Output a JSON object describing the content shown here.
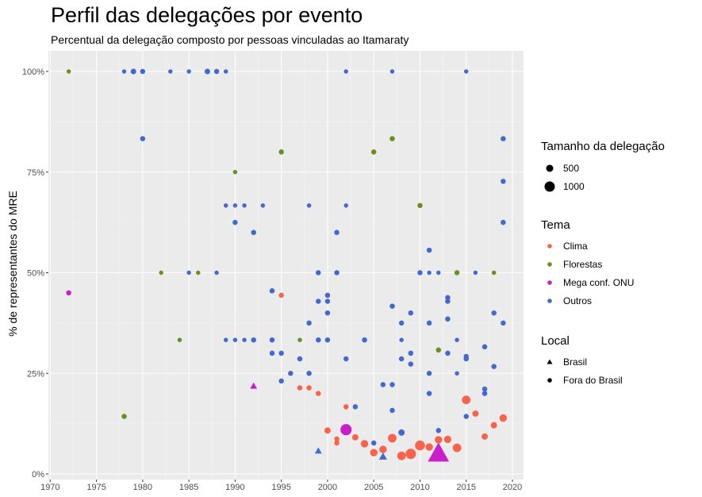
{
  "chart_data": {
    "type": "scatter",
    "title": "Perfil das delegações por evento",
    "subtitle": "Percentual da delegação composto por pessoas vinculadas ao Itamaraty",
    "xlabel": "",
    "ylabel": "% de representantes do MRE",
    "xlim": [
      1969.8,
      2021.2
    ],
    "ylim": [
      0,
      100
    ],
    "x_ticks": [
      1970,
      1975,
      1980,
      1985,
      1990,
      1995,
      2000,
      2005,
      2010,
      2015,
      2020
    ],
    "y_ticks": [
      0,
      25,
      50,
      75,
      100
    ],
    "y_tick_labels": [
      "0%",
      "25%",
      "50%",
      "75%",
      "100%"
    ],
    "grid": true,
    "legend_position": "right",
    "colors": {
      "Clima": "#f8634e",
      "Florestas": "#6b8e23",
      "Mega conf. ONU": "#c91ec9",
      "Outros": "#4169cf"
    },
    "legends": {
      "size": {
        "title": "Tamanho da delegação",
        "items": [
          {
            "label": "500",
            "value": 500
          },
          {
            "label": "1000",
            "value": 1000
          }
        ]
      },
      "color": {
        "title": "Tema",
        "items": [
          "Clima",
          "Florestas",
          "Mega conf. ONU",
          "Outros"
        ]
      },
      "shape": {
        "title": "Local",
        "items": [
          {
            "label": "Brasil",
            "shape": "triangle"
          },
          {
            "label": "Fora do Brasil",
            "shape": "circle"
          }
        ]
      }
    },
    "points": [
      {
        "x": 1972,
        "y": 100,
        "tema": "Florestas",
        "local": "Fora do Brasil",
        "size": 15
      },
      {
        "x": 1972,
        "y": 45,
        "tema": "Mega conf. ONU",
        "local": "Fora do Brasil",
        "size": 30
      },
      {
        "x": 1978,
        "y": 14.3,
        "tema": "Florestas",
        "local": "Fora do Brasil",
        "size": 30
      },
      {
        "x": 1978,
        "y": 100,
        "tema": "Outros",
        "local": "Fora do Brasil",
        "size": 15
      },
      {
        "x": 1979,
        "y": 100,
        "tema": "Outros",
        "local": "Fora do Brasil",
        "size": 40
      },
      {
        "x": 1980,
        "y": 100,
        "tema": "Outros",
        "local": "Fora do Brasil",
        "size": 30
      },
      {
        "x": 1980,
        "y": 83.3,
        "tema": "Outros",
        "local": "Fora do Brasil",
        "size": 30
      },
      {
        "x": 1982,
        "y": 50,
        "tema": "Florestas",
        "local": "Fora do Brasil",
        "size": 15
      },
      {
        "x": 1983,
        "y": 100,
        "tema": "Outros",
        "local": "Fora do Brasil",
        "size": 15
      },
      {
        "x": 1984,
        "y": 33.3,
        "tema": "Florestas",
        "local": "Fora do Brasil",
        "size": 15
      },
      {
        "x": 1985,
        "y": 100,
        "tema": "Outros",
        "local": "Fora do Brasil",
        "size": 15
      },
      {
        "x": 1985,
        "y": 50,
        "tema": "Outros",
        "local": "Fora do Brasil",
        "size": 15
      },
      {
        "x": 1986,
        "y": 50,
        "tema": "Florestas",
        "local": "Fora do Brasil",
        "size": 15
      },
      {
        "x": 1987,
        "y": 100,
        "tema": "Outros",
        "local": "Fora do Brasil",
        "size": 40
      },
      {
        "x": 1988,
        "y": 100,
        "tema": "Outros",
        "local": "Fora do Brasil",
        "size": 30
      },
      {
        "x": 1988,
        "y": 50,
        "tema": "Outros",
        "local": "Fora do Brasil",
        "size": 15
      },
      {
        "x": 1989,
        "y": 100,
        "tema": "Outros",
        "local": "Fora do Brasil",
        "size": 15
      },
      {
        "x": 1989,
        "y": 66.7,
        "tema": "Outros",
        "local": "Fora do Brasil",
        "size": 15
      },
      {
        "x": 1989,
        "y": 33.3,
        "tema": "Outros",
        "local": "Fora do Brasil",
        "size": 15
      },
      {
        "x": 1990,
        "y": 75,
        "tema": "Florestas",
        "local": "Fora do Brasil",
        "size": 15
      },
      {
        "x": 1990,
        "y": 66.7,
        "tema": "Outros",
        "local": "Fora do Brasil",
        "size": 15
      },
      {
        "x": 1990,
        "y": 62.5,
        "tema": "Outros",
        "local": "Fora do Brasil",
        "size": 30
      },
      {
        "x": 1990,
        "y": 33.3,
        "tema": "Outros",
        "local": "Fora do Brasil",
        "size": 15
      },
      {
        "x": 1991,
        "y": 66.7,
        "tema": "Outros",
        "local": "Fora do Brasil",
        "size": 15
      },
      {
        "x": 1991,
        "y": 33.3,
        "tema": "Outros",
        "local": "Fora do Brasil",
        "size": 15
      },
      {
        "x": 1992,
        "y": 60,
        "tema": "Outros",
        "local": "Fora do Brasil",
        "size": 30
      },
      {
        "x": 1992,
        "y": 33.3,
        "tema": "Outros",
        "local": "Fora do Brasil",
        "size": 30
      },
      {
        "x": 1992,
        "y": 21.8,
        "tema": "Mega conf. ONU",
        "local": "Brasil",
        "size": 60
      },
      {
        "x": 1993,
        "y": 66.7,
        "tema": "Outros",
        "local": "Fora do Brasil",
        "size": 15
      },
      {
        "x": 1994,
        "y": 45.5,
        "tema": "Outros",
        "local": "Fora do Brasil",
        "size": 30
      },
      {
        "x": 1994,
        "y": 33.3,
        "tema": "Outros",
        "local": "Fora do Brasil",
        "size": 30
      },
      {
        "x": 1994,
        "y": 30,
        "tema": "Outros",
        "local": "Fora do Brasil",
        "size": 30
      },
      {
        "x": 1995,
        "y": 80,
        "tema": "Florestas",
        "local": "Fora do Brasil",
        "size": 30
      },
      {
        "x": 1995,
        "y": 44.4,
        "tema": "Clima",
        "local": "Fora do Brasil",
        "size": 30
      },
      {
        "x": 1995,
        "y": 30,
        "tema": "Outros",
        "local": "Fora do Brasil",
        "size": 30
      },
      {
        "x": 1995,
        "y": 23.1,
        "tema": "Outros",
        "local": "Fora do Brasil",
        "size": 30
      },
      {
        "x": 1996,
        "y": 25,
        "tema": "Outros",
        "local": "Fora do Brasil",
        "size": 30
      },
      {
        "x": 1997,
        "y": 33.3,
        "tema": "Florestas",
        "local": "Fora do Brasil",
        "size": 15
      },
      {
        "x": 1997,
        "y": 28.6,
        "tema": "Outros",
        "local": "Fora do Brasil",
        "size": 30
      },
      {
        "x": 1997,
        "y": 21.4,
        "tema": "Clima",
        "local": "Fora do Brasil",
        "size": 30
      },
      {
        "x": 1998,
        "y": 66.7,
        "tema": "Outros",
        "local": "Fora do Brasil",
        "size": 15
      },
      {
        "x": 1998,
        "y": 37.5,
        "tema": "Outros",
        "local": "Fora do Brasil",
        "size": 30
      },
      {
        "x": 1998,
        "y": 25,
        "tema": "Outros",
        "local": "Fora do Brasil",
        "size": 30
      },
      {
        "x": 1998,
        "y": 21.4,
        "tema": "Clima",
        "local": "Fora do Brasil",
        "size": 30
      },
      {
        "x": 1999,
        "y": 50,
        "tema": "Outros",
        "local": "Fora do Brasil",
        "size": 30
      },
      {
        "x": 1999,
        "y": 42.9,
        "tema": "Outros",
        "local": "Fora do Brasil",
        "size": 30
      },
      {
        "x": 1999,
        "y": 33.3,
        "tema": "Outros",
        "local": "Fora do Brasil",
        "size": 30
      },
      {
        "x": 1999,
        "y": 20,
        "tema": "Clima",
        "local": "Fora do Brasil",
        "size": 30
      },
      {
        "x": 1999,
        "y": 5.7,
        "tema": "Outros",
        "local": "Brasil",
        "size": 60
      },
      {
        "x": 2000,
        "y": 44.4,
        "tema": "Outros",
        "local": "Fora do Brasil",
        "size": 30
      },
      {
        "x": 2000,
        "y": 42.9,
        "tema": "Outros",
        "local": "Fora do Brasil",
        "size": 30
      },
      {
        "x": 2000,
        "y": 40,
        "tema": "Outros",
        "local": "Fora do Brasil",
        "size": 30
      },
      {
        "x": 2000,
        "y": 33.3,
        "tema": "Outros",
        "local": "Fora do Brasil",
        "size": 30
      },
      {
        "x": 2000,
        "y": 10.8,
        "tema": "Clima",
        "local": "Fora do Brasil",
        "size": 60
      },
      {
        "x": 2001,
        "y": 60,
        "tema": "Outros",
        "local": "Fora do Brasil",
        "size": 30
      },
      {
        "x": 2001,
        "y": 50,
        "tema": "Outros",
        "local": "Fora do Brasil",
        "size": 30
      },
      {
        "x": 2001,
        "y": 8.7,
        "tema": "Clima",
        "local": "Fora do Brasil",
        "size": 30
      },
      {
        "x": 2001,
        "y": 7.7,
        "tema": "Clima",
        "local": "Fora do Brasil",
        "size": 30
      },
      {
        "x": 2002,
        "y": 100,
        "tema": "Outros",
        "local": "Fora do Brasil",
        "size": 15
      },
      {
        "x": 2002,
        "y": 66.7,
        "tema": "Outros",
        "local": "Fora do Brasil",
        "size": 15
      },
      {
        "x": 2002,
        "y": 28.6,
        "tema": "Outros",
        "local": "Fora do Brasil",
        "size": 30
      },
      {
        "x": 2002,
        "y": 16.7,
        "tema": "Clima",
        "local": "Fora do Brasil",
        "size": 30
      },
      {
        "x": 2002,
        "y": 11,
        "tema": "Mega conf. ONU",
        "local": "Fora do Brasil",
        "size": 300
      },
      {
        "x": 2003,
        "y": 16.7,
        "tema": "Outros",
        "local": "Fora do Brasil",
        "size": 30
      },
      {
        "x": 2003,
        "y": 9.1,
        "tema": "Clima",
        "local": "Fora do Brasil",
        "size": 60
      },
      {
        "x": 2004,
        "y": 33.3,
        "tema": "Outros",
        "local": "Fora do Brasil",
        "size": 30
      },
      {
        "x": 2004,
        "y": 7.5,
        "tema": "Clima",
        "local": "Fora do Brasil",
        "size": 100
      },
      {
        "x": 2005,
        "y": 80,
        "tema": "Florestas",
        "local": "Fora do Brasil",
        "size": 30
      },
      {
        "x": 2005,
        "y": 7.7,
        "tema": "Outros",
        "local": "Fora do Brasil",
        "size": 30
      },
      {
        "x": 2005,
        "y": 5.3,
        "tema": "Clima",
        "local": "Fora do Brasil",
        "size": 100
      },
      {
        "x": 2006,
        "y": 22.2,
        "tema": "Outros",
        "local": "Fora do Brasil",
        "size": 30
      },
      {
        "x": 2006,
        "y": 6.1,
        "tema": "Clima",
        "local": "Fora do Brasil",
        "size": 100
      },
      {
        "x": 2006,
        "y": 4.3,
        "tema": "Outros",
        "local": "Brasil",
        "size": 90
      },
      {
        "x": 2007,
        "y": 100,
        "tema": "Outros",
        "local": "Fora do Brasil",
        "size": 15
      },
      {
        "x": 2007,
        "y": 83.3,
        "tema": "Florestas",
        "local": "Fora do Brasil",
        "size": 30
      },
      {
        "x": 2007,
        "y": 41.7,
        "tema": "Outros",
        "local": "Fora do Brasil",
        "size": 30
      },
      {
        "x": 2007,
        "y": 22.2,
        "tema": "Outros",
        "local": "Fora do Brasil",
        "size": 30
      },
      {
        "x": 2007,
        "y": 15.8,
        "tema": "Outros",
        "local": "Fora do Brasil",
        "size": 30
      },
      {
        "x": 2007,
        "y": 8.9,
        "tema": "Clima",
        "local": "Fora do Brasil",
        "size": 150
      },
      {
        "x": 2008,
        "y": 37.5,
        "tema": "Outros",
        "local": "Fora do Brasil",
        "size": 30
      },
      {
        "x": 2008,
        "y": 33.3,
        "tema": "Outros",
        "local": "Fora do Brasil",
        "size": 15
      },
      {
        "x": 2008,
        "y": 28.6,
        "tema": "Outros",
        "local": "Fora do Brasil",
        "size": 30
      },
      {
        "x": 2008,
        "y": 10.3,
        "tema": "Outros",
        "local": "Fora do Brasil",
        "size": 60
      },
      {
        "x": 2008,
        "y": 4.5,
        "tema": "Clima",
        "local": "Fora do Brasil",
        "size": 150
      },
      {
        "x": 2009,
        "y": 40,
        "tema": "Outros",
        "local": "Fora do Brasil",
        "size": 30
      },
      {
        "x": 2009,
        "y": 30,
        "tema": "Outros",
        "local": "Fora do Brasil",
        "size": 30
      },
      {
        "x": 2009,
        "y": 27.3,
        "tema": "Outros",
        "local": "Fora do Brasil",
        "size": 30
      },
      {
        "x": 2009,
        "y": 5,
        "tema": "Clima",
        "local": "Fora do Brasil",
        "size": 250
      },
      {
        "x": 2010,
        "y": 66.7,
        "tema": "Florestas",
        "local": "Fora do Brasil",
        "size": 30
      },
      {
        "x": 2010,
        "y": 50,
        "tema": "Outros",
        "local": "Fora do Brasil",
        "size": 30
      },
      {
        "x": 2010,
        "y": 7.1,
        "tema": "Clima",
        "local": "Fora do Brasil",
        "size": 220
      },
      {
        "x": 2011,
        "y": 55.6,
        "tema": "Outros",
        "local": "Fora do Brasil",
        "size": 30
      },
      {
        "x": 2011,
        "y": 50,
        "tema": "Outros",
        "local": "Fora do Brasil",
        "size": 15
      },
      {
        "x": 2011,
        "y": 37.5,
        "tema": "Outros",
        "local": "Fora do Brasil",
        "size": 30
      },
      {
        "x": 2011,
        "y": 25,
        "tema": "Outros",
        "local": "Fora do Brasil",
        "size": 30
      },
      {
        "x": 2011,
        "y": 20,
        "tema": "Outros",
        "local": "Fora do Brasil",
        "size": 30
      },
      {
        "x": 2011,
        "y": 6.7,
        "tema": "Clima",
        "local": "Fora do Brasil",
        "size": 100
      },
      {
        "x": 2012,
        "y": 50,
        "tema": "Outros",
        "local": "Fora do Brasil",
        "size": 15
      },
      {
        "x": 2012,
        "y": 30.8,
        "tema": "Florestas",
        "local": "Fora do Brasil",
        "size": 30
      },
      {
        "x": 2012,
        "y": 10.8,
        "tema": "Outros",
        "local": "Fora do Brasil",
        "size": 30
      },
      {
        "x": 2012,
        "y": 8.5,
        "tema": "Clima",
        "local": "Fora do Brasil",
        "size": 100
      },
      {
        "x": 2012,
        "y": 5,
        "tema": "Mega conf. ONU",
        "local": "Brasil",
        "size": 1100
      },
      {
        "x": 2013,
        "y": 43.8,
        "tema": "Outros",
        "local": "Fora do Brasil",
        "size": 30
      },
      {
        "x": 2013,
        "y": 42.9,
        "tema": "Outros",
        "local": "Fora do Brasil",
        "size": 30
      },
      {
        "x": 2013,
        "y": 38.5,
        "tema": "Outros",
        "local": "Fora do Brasil",
        "size": 30
      },
      {
        "x": 2013,
        "y": 30,
        "tema": "Outros",
        "local": "Fora do Brasil",
        "size": 30
      },
      {
        "x": 2013,
        "y": 8.6,
        "tema": "Clima",
        "local": "Fora do Brasil",
        "size": 100
      },
      {
        "x": 2014,
        "y": 50,
        "tema": "Florestas",
        "local": "Fora do Brasil",
        "size": 30
      },
      {
        "x": 2014,
        "y": 33.3,
        "tema": "Outros",
        "local": "Fora do Brasil",
        "size": 15
      },
      {
        "x": 2014,
        "y": 25,
        "tema": "Outros",
        "local": "Fora do Brasil",
        "size": 15
      },
      {
        "x": 2014,
        "y": 6.5,
        "tema": "Clima",
        "local": "Fora do Brasil",
        "size": 150
      },
      {
        "x": 2015,
        "y": 100,
        "tema": "Outros",
        "local": "Fora do Brasil",
        "size": 15
      },
      {
        "x": 2015,
        "y": 29.2,
        "tema": "Outros",
        "local": "Fora do Brasil",
        "size": 30
      },
      {
        "x": 2015,
        "y": 28.6,
        "tema": "Outros",
        "local": "Fora do Brasil",
        "size": 30
      },
      {
        "x": 2015,
        "y": 18.4,
        "tema": "Clima",
        "local": "Fora do Brasil",
        "size": 150
      },
      {
        "x": 2015,
        "y": 14.3,
        "tema": "Outros",
        "local": "Fora do Brasil",
        "size": 30
      },
      {
        "x": 2016,
        "y": 50,
        "tema": "Outros",
        "local": "Fora do Brasil",
        "size": 15
      },
      {
        "x": 2016,
        "y": 15,
        "tema": "Clima",
        "local": "Fora do Brasil",
        "size": 60
      },
      {
        "x": 2017,
        "y": 31.6,
        "tema": "Outros",
        "local": "Fora do Brasil",
        "size": 30
      },
      {
        "x": 2017,
        "y": 21.1,
        "tema": "Outros",
        "local": "Fora do Brasil",
        "size": 30
      },
      {
        "x": 2017,
        "y": 20,
        "tema": "Outros",
        "local": "Fora do Brasil",
        "size": 30
      },
      {
        "x": 2017,
        "y": 9.3,
        "tema": "Clima",
        "local": "Fora do Brasil",
        "size": 60
      },
      {
        "x": 2018,
        "y": 50,
        "tema": "Florestas",
        "local": "Fora do Brasil",
        "size": 15
      },
      {
        "x": 2018,
        "y": 40,
        "tema": "Outros",
        "local": "Fora do Brasil",
        "size": 30
      },
      {
        "x": 2018,
        "y": 26.7,
        "tema": "Outros",
        "local": "Fora do Brasil",
        "size": 30
      },
      {
        "x": 2018,
        "y": 12.1,
        "tema": "Clima",
        "local": "Fora do Brasil",
        "size": 60
      },
      {
        "x": 2019,
        "y": 83.3,
        "tema": "Outros",
        "local": "Fora do Brasil",
        "size": 30
      },
      {
        "x": 2019,
        "y": 72.7,
        "tema": "Outros",
        "local": "Fora do Brasil",
        "size": 30
      },
      {
        "x": 2019,
        "y": 62.5,
        "tema": "Outros",
        "local": "Fora do Brasil",
        "size": 30
      },
      {
        "x": 2019,
        "y": 37.5,
        "tema": "Outros",
        "local": "Fora do Brasil",
        "size": 30
      },
      {
        "x": 2019,
        "y": 13.9,
        "tema": "Clima",
        "local": "Fora do Brasil",
        "size": 100
      }
    ]
  }
}
